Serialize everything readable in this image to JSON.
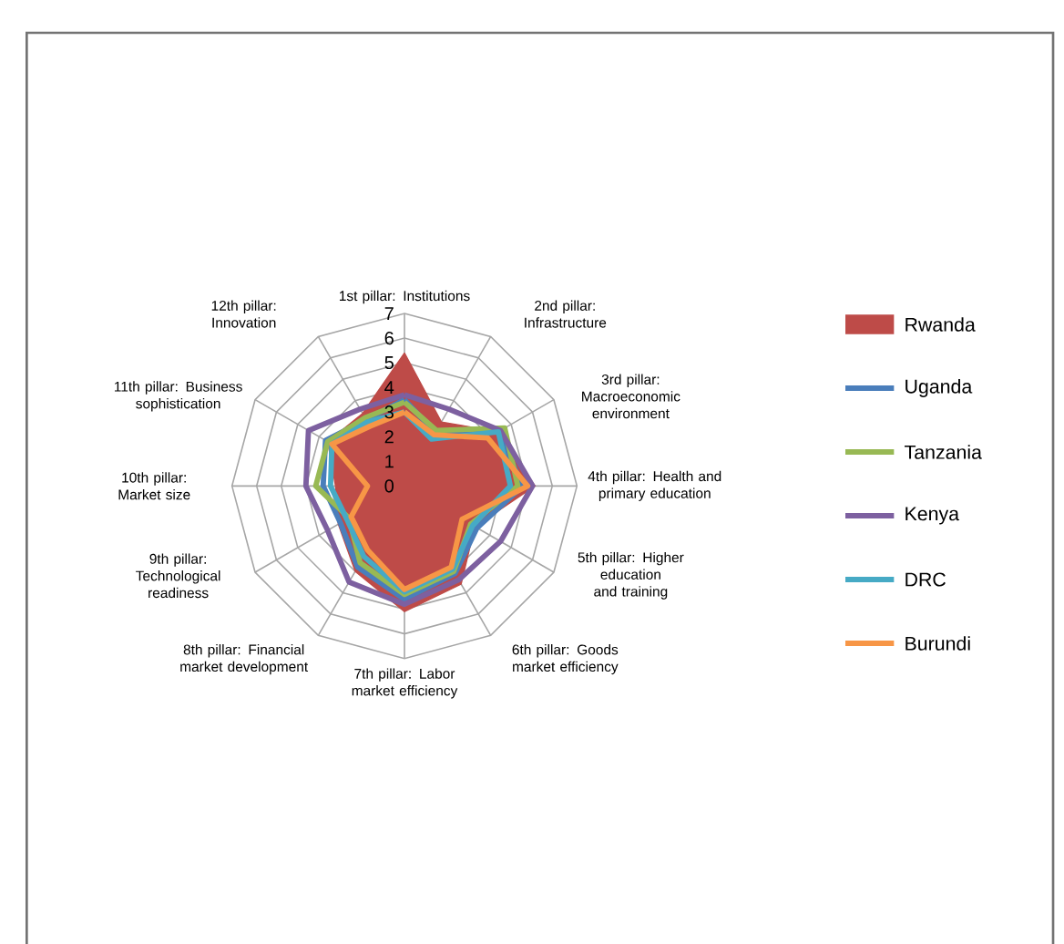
{
  "chart_data": {
    "type": "radar",
    "categories": [
      "1st pillar: Institutions",
      "2nd pillar: Infrastructure",
      "3rd pillar: Macroeconomic environment",
      "4th pillar: Health and primary education",
      "5th pillar: Higher education and training",
      "6th pillar: Goods market efficiency",
      "7th pillar: Labor market efficiency",
      "8th pillar: Financial market development",
      "9th pillar: Technological readiness",
      "10th pillar: Market size",
      "11th pillar: Business sophistication",
      "12th pillar: Innovation"
    ],
    "series": [
      {
        "name": "Rwanda",
        "type": "area",
        "color": "#be4b48",
        "values": [
          5.4,
          3.0,
          4.4,
          5.3,
          3.3,
          4.6,
          5.1,
          4.0,
          3.1,
          2.8,
          3.6,
          3.4
        ]
      },
      {
        "name": "Uganda",
        "color": "#4a7ebb",
        "values": [
          3.5,
          2.5,
          4.4,
          4.8,
          3.4,
          4.1,
          4.6,
          3.8,
          3.0,
          3.3,
          3.7,
          3.1
        ]
      },
      {
        "name": "Tanzania",
        "color": "#98b954",
        "values": [
          3.4,
          2.6,
          4.7,
          4.6,
          3.1,
          4.0,
          4.4,
          3.6,
          2.6,
          3.6,
          3.6,
          3.2
        ]
      },
      {
        "name": "Kenya",
        "color": "#7d60a0",
        "values": [
          3.7,
          3.6,
          4.5,
          5.2,
          4.5,
          4.4,
          4.8,
          4.5,
          3.6,
          4.0,
          4.5,
          3.6
        ]
      },
      {
        "name": "DRC",
        "color": "#46aac5",
        "values": [
          3.0,
          2.2,
          4.4,
          4.3,
          3.2,
          3.9,
          4.3,
          3.3,
          2.7,
          3.0,
          3.4,
          3.0
        ]
      },
      {
        "name": "Burundi",
        "color": "#f79646",
        "values": [
          3.0,
          2.4,
          3.9,
          5.0,
          2.7,
          3.8,
          4.2,
          3.0,
          2.5,
          1.5,
          3.4,
          2.8
        ]
      }
    ],
    "ylim": [
      0,
      7
    ],
    "yticks": [
      0,
      1,
      2,
      3,
      4,
      5,
      6,
      7
    ],
    "grid": true,
    "legend": "right"
  }
}
